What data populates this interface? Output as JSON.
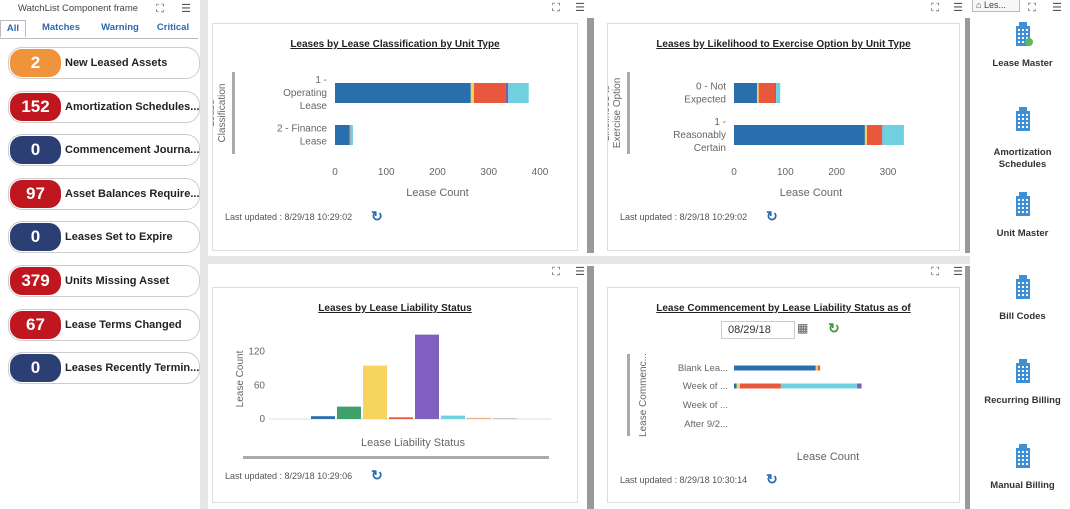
{
  "watchlist": {
    "title": "WatchList Component frame",
    "tabs": [
      "All",
      "Matches",
      "Warning",
      "Critical"
    ],
    "items": [
      {
        "count": "2",
        "label": "New Leased Assets",
        "color": "#f0943b"
      },
      {
        "count": "152",
        "label": "Amortization Schedules...",
        "color": "#c0161f"
      },
      {
        "count": "0",
        "label": "Commencement Journa...",
        "color": "#2c3f74"
      },
      {
        "count": "97",
        "label": "Asset Balances Require...",
        "color": "#c0161f"
      },
      {
        "count": "0",
        "label": "Leases Set to Expire",
        "color": "#2c3f74"
      },
      {
        "count": "379",
        "label": "Units Missing Asset",
        "color": "#c0161f"
      },
      {
        "count": "67",
        "label": "Lease Terms Changed",
        "color": "#c0161f"
      },
      {
        "count": "0",
        "label": "Leases Recently Termin...",
        "color": "#2c3f74"
      }
    ]
  },
  "panels": {
    "p1": {
      "title": "Leases by Lease Classification by Unit Type",
      "updated": "Last updated : 8/29/18 10:29:02"
    },
    "p2": {
      "title": "Leases by Likelihood to Exercise Option by Unit Type",
      "updated": "Last updated : 8/29/18 10:29:02"
    },
    "p3": {
      "title": "Leases by Lease Liability Status",
      "updated": "Last updated : 8/29/18 10:29:06"
    },
    "p4": {
      "title": "Lease Commencement by Lease Liability Status as of",
      "updated": "Last updated : 8/29/18 10:30:14",
      "date": "08/29/18"
    }
  },
  "right_nav": {
    "top_tab": "Les...",
    "items": [
      "Lease Master",
      "Amortization Schedules",
      "Unit Master",
      "Bill Codes",
      "Recurring Billing",
      "Manual Billing"
    ]
  },
  "chart_data": [
    {
      "type": "bar",
      "orientation": "horizontal",
      "stacked": true,
      "title": "Leases by Lease Classification by Unit Type",
      "xlabel": "Lease Count",
      "ylabel": "Lease Classification",
      "categories": [
        "1 - Operating Lease",
        "2 - Finance Lease"
      ],
      "category_lines": [
        [
          "1 -",
          "Operating",
          "Lease"
        ],
        [
          "2 - Finance",
          "Lease"
        ]
      ],
      "xlim": [
        0,
        400
      ],
      "xticks": [
        0,
        100,
        200,
        300,
        400
      ],
      "series": [
        {
          "color": "#2a6fad",
          "values": [
            265,
            28
          ]
        },
        {
          "color": "#f2d45a",
          "values": [
            6,
            0
          ]
        },
        {
          "color": "#e8583c",
          "values": [
            62,
            2
          ]
        },
        {
          "color": "#7a5cb0",
          "values": [
            5,
            0
          ]
        },
        {
          "color": "#6fd0e0",
          "values": [
            40,
            5
          ]
        }
      ]
    },
    {
      "type": "bar",
      "orientation": "horizontal",
      "stacked": true,
      "title": "Leases by Likelihood to Exercise Option by Unit Type",
      "xlabel": "Lease Count",
      "ylabel": "Likelihood to Exercise Option",
      "categories": [
        "0 - Not Expected",
        "1 - Reasonably Certain"
      ],
      "category_lines": [
        [
          "0 - Not",
          "Expected"
        ],
        [
          "1 -",
          "Reasonably",
          "Certain"
        ]
      ],
      "xlim": [
        0,
        300
      ],
      "xticks": [
        0,
        100,
        200,
        300
      ],
      "series": [
        {
          "color": "#2a6fad",
          "values": [
            45,
            255
          ]
        },
        {
          "color": "#f2d45a",
          "values": [
            3,
            4
          ]
        },
        {
          "color": "#e8583c",
          "values": [
            32,
            28
          ]
        },
        {
          "color": "#7a5cb0",
          "values": [
            2,
            2
          ]
        },
        {
          "color": "#6fd0e0",
          "values": [
            8,
            42
          ]
        }
      ]
    },
    {
      "type": "bar",
      "title": "Leases by Lease Liability Status",
      "xlabel": "Lease Liability Status",
      "ylabel": "Lease Count",
      "ylim": [
        0,
        160
      ],
      "yticks": [
        0,
        60,
        120
      ],
      "values": [
        5,
        22,
        95,
        3,
        150,
        6,
        2,
        1
      ],
      "colors": [
        "#2a6fad",
        "#3fa06a",
        "#f7d45e",
        "#e8583c",
        "#7f5fbf",
        "#6fd0e0",
        "#f3b183",
        "#9aa0a6"
      ]
    },
    {
      "type": "bar",
      "orientation": "horizontal",
      "stacked": true,
      "title": "Lease Commencement by Lease Liability Status as of",
      "xlabel": "Lease Count",
      "ylabel": "Lease Commenc...",
      "categories": [
        "Blank Lea...",
        "Week of ...",
        "Week of ...",
        "After 9/2..."
      ],
      "xlim": [
        0,
        400
      ],
      "series": [
        {
          "color": "#2a6fad",
          "values": [
            150,
            5,
            0,
            0
          ]
        },
        {
          "color": "#f2d45a",
          "values": [
            4,
            6,
            0,
            0
          ]
        },
        {
          "color": "#e8583c",
          "values": [
            4,
            75,
            0,
            0
          ]
        },
        {
          "color": "#6fd0e0",
          "values": [
            0,
            140,
            0,
            0
          ]
        },
        {
          "color": "#7a5cb0",
          "values": [
            0,
            8,
            0,
            0
          ]
        }
      ]
    }
  ]
}
